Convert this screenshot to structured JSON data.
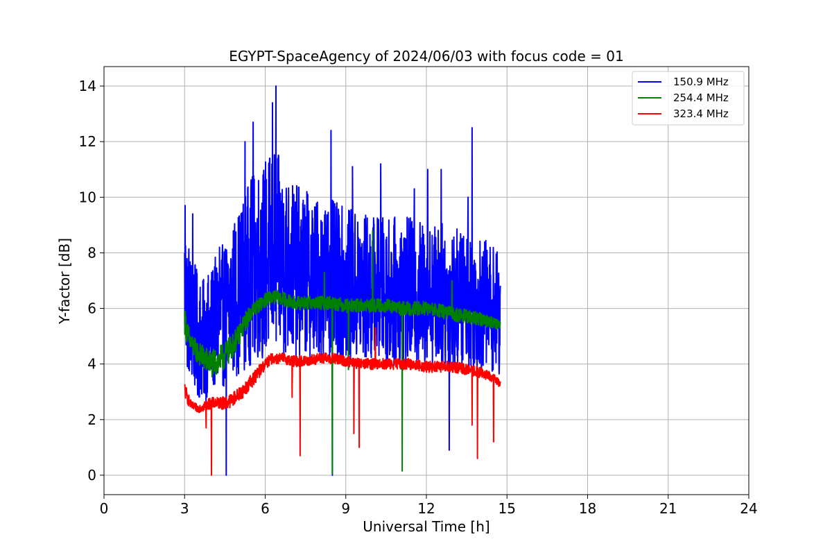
{
  "chart_data": {
    "type": "line",
    "title": "EGYPT-SpaceAgency of 2024/06/03 with focus code = 01",
    "xlabel": "Universal Time [h]",
    "ylabel": "Y-factor [dB]",
    "xlim": [
      0,
      24
    ],
    "ylim": [
      -0.7,
      14.7
    ],
    "xticks": [
      0,
      3,
      6,
      9,
      12,
      15,
      18,
      21,
      24
    ],
    "xtick_labels": [
      "0",
      "3",
      "6",
      "9",
      "12",
      "15",
      "18",
      "21",
      "24"
    ],
    "yticks": [
      0,
      2,
      4,
      6,
      8,
      10,
      12,
      14
    ],
    "ytick_labels": [
      "0",
      "2",
      "4",
      "6",
      "8",
      "10",
      "12",
      "14"
    ],
    "grid": true,
    "legend_position": "top-right",
    "series": [
      {
        "name": "150.9 MHz",
        "color": "#0000ff",
        "x": [
          3.0,
          3.1,
          3.25,
          3.5,
          3.75,
          4.0,
          4.25,
          4.5,
          4.75,
          5.0,
          5.25,
          5.5,
          5.75,
          6.0,
          6.25,
          6.5,
          6.75,
          7.0,
          7.5,
          8.0,
          8.5,
          9.0,
          9.5,
          10.0,
          10.5,
          11.0,
          11.5,
          12.0,
          12.5,
          13.0,
          13.5,
          14.0,
          14.5,
          14.75
        ],
        "y": [
          6.8,
          6.2,
          5.6,
          5.0,
          4.8,
          5.2,
          5.6,
          5.8,
          6.2,
          6.6,
          7.0,
          7.4,
          7.6,
          7.8,
          8.0,
          7.9,
          7.6,
          7.4,
          7.2,
          7.1,
          7.0,
          6.8,
          6.7,
          6.7,
          6.6,
          6.6,
          6.6,
          6.5,
          6.5,
          6.4,
          6.3,
          6.2,
          6.0,
          5.7
        ],
        "amplitude": [
          2.8,
          2.6,
          2.4,
          2.3,
          2.2,
          2.3,
          2.5,
          2.6,
          2.8,
          3.0,
          3.2,
          3.4,
          3.5,
          3.6,
          3.8,
          3.6,
          3.4,
          3.2,
          3.0,
          2.9,
          2.9,
          2.8,
          2.8,
          2.7,
          2.7,
          2.7,
          2.7,
          2.6,
          2.6,
          2.6,
          2.5,
          2.4,
          2.3,
          2.2
        ],
        "spikes": [
          [
            3.02,
            9.7
          ],
          [
            3.3,
            9.4
          ],
          [
            4.3,
            8.2
          ],
          [
            5.25,
            12.0
          ],
          [
            5.55,
            12.7
          ],
          [
            6.27,
            13.4
          ],
          [
            6.4,
            14.0
          ],
          [
            7.55,
            10.2
          ],
          [
            8.45,
            12.4
          ],
          [
            9.25,
            11.1
          ],
          [
            10.3,
            11.2
          ],
          [
            11.55,
            10.3
          ],
          [
            12.05,
            11.0
          ],
          [
            12.55,
            11.0
          ],
          [
            13.55,
            10.0
          ],
          [
            13.7,
            12.5
          ],
          [
            4.55,
            0.0
          ],
          [
            8.5,
            0.0
          ],
          [
            12.85,
            0.9
          ]
        ]
      },
      {
        "name": "254.4 MHz",
        "color": "#008000",
        "x": [
          3.0,
          3.1,
          3.25,
          3.5,
          3.75,
          4.0,
          4.25,
          4.5,
          4.75,
          5.0,
          5.25,
          5.5,
          5.75,
          6.0,
          6.25,
          6.5,
          6.75,
          7.0,
          7.5,
          8.0,
          8.5,
          9.0,
          9.5,
          10.0,
          10.5,
          11.0,
          11.5,
          12.0,
          12.5,
          13.0,
          13.5,
          14.0,
          14.5,
          14.75
        ],
        "y": [
          5.6,
          5.1,
          4.7,
          4.4,
          4.2,
          4.0,
          4.1,
          4.3,
          4.6,
          5.0,
          5.5,
          5.9,
          6.1,
          6.3,
          6.4,
          6.4,
          6.3,
          6.2,
          6.2,
          6.2,
          6.2,
          6.1,
          6.1,
          6.1,
          6.1,
          6.0,
          6.0,
          6.0,
          5.9,
          5.8,
          5.7,
          5.6,
          5.5,
          5.4
        ],
        "amplitude": [
          0.5,
          0.45,
          0.4,
          0.4,
          0.45,
          0.5,
          0.5,
          0.5,
          0.45,
          0.4,
          0.35,
          0.3,
          0.25,
          0.25,
          0.25,
          0.25,
          0.25,
          0.25,
          0.25,
          0.25,
          0.25,
          0.25,
          0.25,
          0.25,
          0.25,
          0.25,
          0.25,
          0.25,
          0.25,
          0.25,
          0.25,
          0.25,
          0.2,
          0.2
        ],
        "spikes": [
          [
            10.0,
            8.8
          ],
          [
            8.5,
            0.05
          ],
          [
            11.1,
            0.15
          ],
          [
            12.95,
            7.0
          ],
          [
            8.2,
            7.3
          ],
          [
            9.1,
            3.8
          ]
        ]
      },
      {
        "name": "323.4 MHz",
        "color": "#ff0000",
        "x": [
          3.0,
          3.1,
          3.25,
          3.5,
          3.75,
          4.0,
          4.25,
          4.5,
          4.75,
          5.0,
          5.25,
          5.5,
          5.75,
          6.0,
          6.25,
          6.5,
          6.75,
          7.0,
          7.5,
          8.0,
          8.5,
          9.0,
          9.5,
          10.0,
          10.5,
          11.0,
          11.5,
          12.0,
          12.5,
          13.0,
          13.5,
          14.0,
          14.5,
          14.75
        ],
        "y": [
          3.1,
          2.8,
          2.5,
          2.4,
          2.5,
          2.6,
          2.6,
          2.6,
          2.7,
          2.9,
          3.1,
          3.4,
          3.7,
          4.0,
          4.2,
          4.2,
          4.2,
          4.1,
          4.1,
          4.2,
          4.2,
          4.1,
          4.0,
          4.0,
          4.0,
          4.0,
          4.0,
          3.9,
          3.9,
          3.9,
          3.8,
          3.7,
          3.5,
          3.3
        ],
        "amplitude": [
          0.3,
          0.25,
          0.15,
          0.15,
          0.2,
          0.2,
          0.2,
          0.25,
          0.25,
          0.25,
          0.25,
          0.25,
          0.25,
          0.2,
          0.2,
          0.2,
          0.2,
          0.2,
          0.2,
          0.2,
          0.2,
          0.2,
          0.2,
          0.2,
          0.2,
          0.2,
          0.2,
          0.2,
          0.2,
          0.2,
          0.2,
          0.2,
          0.15,
          0.15
        ],
        "spikes": [
          [
            4.0,
            0.0
          ],
          [
            7.3,
            0.7
          ],
          [
            7.0,
            2.8
          ],
          [
            9.3,
            1.5
          ],
          [
            9.5,
            1.0
          ],
          [
            10.1,
            5.3
          ],
          [
            13.7,
            1.8
          ],
          [
            13.9,
            0.6
          ],
          [
            14.5,
            1.2
          ],
          [
            3.8,
            1.7
          ]
        ]
      }
    ]
  }
}
